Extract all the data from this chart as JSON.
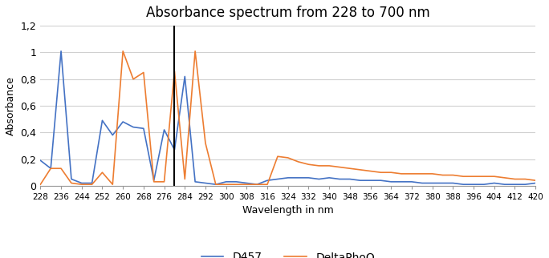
{
  "title": "Absorbance spectrum from 228 to 700 nm",
  "xlabel": "Wavelength in nm",
  "ylabel": "Absorbance",
  "vline_x": 280,
  "vline_color": "#000000",
  "xlim": [
    228,
    420
  ],
  "ylim": [
    0,
    1.2
  ],
  "yticks": [
    0,
    0.2,
    0.4,
    0.6,
    0.8,
    1.0,
    1.2
  ],
  "ytick_labels": [
    "0",
    "0,2",
    "0,4",
    "0,6",
    "0,8",
    "1",
    "1,2"
  ],
  "background_color": "#ffffff",
  "legend_labels": [
    "D457",
    "DeltaPhoQ"
  ],
  "line_colors": [
    "#4472C4",
    "#ED7D31"
  ],
  "wavelengths": [
    228,
    232,
    236,
    240,
    244,
    248,
    252,
    256,
    260,
    264,
    268,
    272,
    276,
    280,
    284,
    288,
    292,
    296,
    300,
    304,
    308,
    312,
    316,
    320,
    324,
    328,
    332,
    336,
    340,
    344,
    348,
    352,
    356,
    360,
    364,
    368,
    372,
    376,
    380,
    384,
    388,
    392,
    396,
    400,
    404,
    408,
    412,
    416,
    420
  ],
  "D457": [
    0.19,
    0.13,
    1.01,
    0.05,
    0.02,
    0.02,
    0.49,
    0.38,
    0.48,
    0.44,
    0.43,
    0.04,
    0.42,
    0.27,
    0.82,
    0.03,
    0.02,
    0.01,
    0.03,
    0.03,
    0.02,
    0.01,
    0.04,
    0.05,
    0.06,
    0.06,
    0.06,
    0.05,
    0.06,
    0.05,
    0.05,
    0.04,
    0.04,
    0.04,
    0.03,
    0.03,
    0.03,
    0.02,
    0.02,
    0.02,
    0.02,
    0.01,
    0.01,
    0.01,
    0.02,
    0.01,
    0.01,
    0.01,
    0.02
  ],
  "DeltaPhoQ": [
    0.01,
    0.13,
    0.13,
    0.02,
    0.01,
    0.01,
    0.1,
    0.01,
    1.01,
    0.8,
    0.85,
    0.03,
    0.03,
    0.86,
    0.05,
    1.01,
    0.32,
    0.01,
    0.01,
    0.01,
    0.01,
    0.01,
    0.01,
    0.22,
    0.21,
    0.18,
    0.16,
    0.15,
    0.15,
    0.14,
    0.13,
    0.12,
    0.11,
    0.1,
    0.1,
    0.09,
    0.09,
    0.09,
    0.09,
    0.08,
    0.08,
    0.07,
    0.07,
    0.07,
    0.07,
    0.06,
    0.05,
    0.05,
    0.04
  ]
}
